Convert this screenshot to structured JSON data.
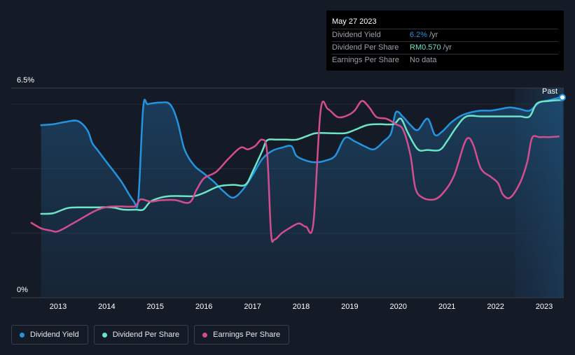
{
  "tooltip": {
    "date": "May 27 2023",
    "rows": [
      {
        "label": "Dividend Yield",
        "value": "6.2%",
        "unit": "/yr",
        "color": "#2394df"
      },
      {
        "label": "Dividend Per Share",
        "value": "RM0.570",
        "unit": "/yr",
        "color": "#6ce4c6"
      },
      {
        "label": "Earnings Per Share",
        "value": "No data",
        "unit": "",
        "color": "#9aa1ab"
      }
    ]
  },
  "legend": [
    {
      "label": "Dividend Yield",
      "color": "#2394df"
    },
    {
      "label": "Dividend Per Share",
      "color": "#6ce4c6"
    },
    {
      "label": "Earnings Per Share",
      "color": "#d44e8f"
    }
  ],
  "chart_data": {
    "type": "line",
    "ylim": [
      0,
      6.5
    ],
    "y_labels": [
      "6.5%",
      "0%"
    ],
    "x_ticks": [
      "2013",
      "2014",
      "2015",
      "2016",
      "2017",
      "2018",
      "2019",
      "2020",
      "2021",
      "2022",
      "2023"
    ],
    "x_range": [
      2012.45,
      2023.45
    ],
    "past_label": "Past",
    "forecast_start": 2022.4,
    "series": [
      {
        "name": "Dividend Yield",
        "color": "#2394df",
        "fill": true,
        "points": [
          [
            2012.65,
            5.35
          ],
          [
            2012.9,
            5.38
          ],
          [
            2013.15,
            5.45
          ],
          [
            2013.4,
            5.48
          ],
          [
            2013.6,
            5.2
          ],
          [
            2013.7,
            4.8
          ],
          [
            2013.8,
            4.6
          ],
          [
            2014.0,
            4.2
          ],
          [
            2014.3,
            3.6
          ],
          [
            2014.55,
            3.0
          ],
          [
            2014.65,
            3.05
          ],
          [
            2014.75,
            5.9
          ],
          [
            2014.85,
            6.0
          ],
          [
            2015.1,
            6.05
          ],
          [
            2015.3,
            6.0
          ],
          [
            2015.45,
            5.5
          ],
          [
            2015.6,
            4.6
          ],
          [
            2015.8,
            4.1
          ],
          [
            2016.0,
            3.85
          ],
          [
            2016.2,
            3.6
          ],
          [
            2016.4,
            3.3
          ],
          [
            2016.6,
            3.1
          ],
          [
            2016.8,
            3.35
          ],
          [
            2017.0,
            3.8
          ],
          [
            2017.2,
            4.3
          ],
          [
            2017.4,
            4.55
          ],
          [
            2017.6,
            4.65
          ],
          [
            2017.8,
            4.7
          ],
          [
            2017.9,
            4.4
          ],
          [
            2018.1,
            4.25
          ],
          [
            2018.3,
            4.2
          ],
          [
            2018.5,
            4.25
          ],
          [
            2018.7,
            4.4
          ],
          [
            2018.9,
            4.95
          ],
          [
            2019.1,
            4.85
          ],
          [
            2019.3,
            4.7
          ],
          [
            2019.5,
            4.6
          ],
          [
            2019.7,
            4.85
          ],
          [
            2019.85,
            5.1
          ],
          [
            2019.95,
            5.75
          ],
          [
            2020.1,
            5.6
          ],
          [
            2020.25,
            5.35
          ],
          [
            2020.4,
            5.2
          ],
          [
            2020.6,
            5.55
          ],
          [
            2020.75,
            5.05
          ],
          [
            2020.9,
            5.15
          ],
          [
            2021.1,
            5.45
          ],
          [
            2021.3,
            5.65
          ],
          [
            2021.5,
            5.75
          ],
          [
            2021.7,
            5.8
          ],
          [
            2021.9,
            5.8
          ],
          [
            2022.1,
            5.85
          ],
          [
            2022.3,
            5.9
          ],
          [
            2022.5,
            5.85
          ],
          [
            2022.7,
            5.8
          ],
          [
            2022.9,
            6.05
          ],
          [
            2023.1,
            6.12
          ],
          [
            2023.3,
            6.2
          ],
          [
            2023.38,
            6.21
          ]
        ]
      },
      {
        "name": "Dividend Per Share",
        "color": "#6ce4c6",
        "fill": false,
        "points": [
          [
            2012.65,
            2.6
          ],
          [
            2012.9,
            2.62
          ],
          [
            2013.2,
            2.78
          ],
          [
            2013.5,
            2.8
          ],
          [
            2013.8,
            2.8
          ],
          [
            2014.1,
            2.8
          ],
          [
            2014.35,
            2.73
          ],
          [
            2014.6,
            2.73
          ],
          [
            2014.75,
            2.73
          ],
          [
            2014.9,
            2.98
          ],
          [
            2015.1,
            3.1
          ],
          [
            2015.3,
            3.15
          ],
          [
            2015.55,
            3.15
          ],
          [
            2015.8,
            3.15
          ],
          [
            2016.0,
            3.25
          ],
          [
            2016.3,
            3.45
          ],
          [
            2016.6,
            3.5
          ],
          [
            2016.85,
            3.5
          ],
          [
            2017.0,
            3.9
          ],
          [
            2017.2,
            4.55
          ],
          [
            2017.3,
            4.88
          ],
          [
            2017.5,
            4.9
          ],
          [
            2017.7,
            4.9
          ],
          [
            2017.9,
            4.9
          ],
          [
            2018.1,
            5.0
          ],
          [
            2018.3,
            5.1
          ],
          [
            2018.6,
            5.1
          ],
          [
            2018.9,
            5.1
          ],
          [
            2019.1,
            5.2
          ],
          [
            2019.35,
            5.35
          ],
          [
            2019.6,
            5.38
          ],
          [
            2019.9,
            5.38
          ],
          [
            2020.05,
            5.55
          ],
          [
            2020.2,
            5.1
          ],
          [
            2020.4,
            4.6
          ],
          [
            2020.6,
            4.58
          ],
          [
            2020.85,
            4.58
          ],
          [
            2021.0,
            4.85
          ],
          [
            2021.2,
            5.3
          ],
          [
            2021.4,
            5.62
          ],
          [
            2021.7,
            5.62
          ],
          [
            2022.0,
            5.62
          ],
          [
            2022.3,
            5.62
          ],
          [
            2022.5,
            5.62
          ],
          [
            2022.7,
            5.62
          ],
          [
            2022.85,
            6.02
          ],
          [
            2023.1,
            6.1
          ],
          [
            2023.38,
            6.13
          ]
        ]
      },
      {
        "name": "Earnings Per Share",
        "color": "#d44e8f",
        "fill": false,
        "points": [
          [
            2012.45,
            2.32
          ],
          [
            2012.65,
            2.15
          ],
          [
            2012.85,
            2.08
          ],
          [
            2013.0,
            2.06
          ],
          [
            2013.3,
            2.3
          ],
          [
            2013.6,
            2.56
          ],
          [
            2013.8,
            2.72
          ],
          [
            2014.0,
            2.81
          ],
          [
            2014.25,
            2.83
          ],
          [
            2014.5,
            2.82
          ],
          [
            2014.6,
            2.85
          ],
          [
            2014.7,
            3.05
          ],
          [
            2014.9,
            2.98
          ],
          [
            2015.1,
            3.02
          ],
          [
            2015.4,
            3.03
          ],
          [
            2015.7,
            2.95
          ],
          [
            2015.85,
            3.35
          ],
          [
            2016.0,
            3.7
          ],
          [
            2016.25,
            3.9
          ],
          [
            2016.5,
            4.3
          ],
          [
            2016.75,
            4.65
          ],
          [
            2016.9,
            4.6
          ],
          [
            2017.05,
            4.7
          ],
          [
            2017.2,
            4.9
          ],
          [
            2017.3,
            4.5
          ],
          [
            2017.38,
            2.0
          ],
          [
            2017.45,
            1.8
          ],
          [
            2017.6,
            2.0
          ],
          [
            2017.75,
            2.15
          ],
          [
            2017.95,
            2.3
          ],
          [
            2018.1,
            2.2
          ],
          [
            2018.25,
            2.3
          ],
          [
            2018.4,
            5.8
          ],
          [
            2018.55,
            5.85
          ],
          [
            2018.75,
            5.6
          ],
          [
            2018.95,
            5.65
          ],
          [
            2019.1,
            5.8
          ],
          [
            2019.25,
            6.1
          ],
          [
            2019.4,
            5.9
          ],
          [
            2019.55,
            5.6
          ],
          [
            2019.75,
            5.55
          ],
          [
            2019.95,
            5.38
          ],
          [
            2020.1,
            5.2
          ],
          [
            2020.25,
            4.4
          ],
          [
            2020.35,
            3.4
          ],
          [
            2020.5,
            3.1
          ],
          [
            2020.75,
            3.05
          ],
          [
            2020.95,
            3.3
          ],
          [
            2021.15,
            3.8
          ],
          [
            2021.35,
            4.75
          ],
          [
            2021.45,
            4.95
          ],
          [
            2021.55,
            4.7
          ],
          [
            2021.7,
            4.0
          ],
          [
            2021.9,
            3.75
          ],
          [
            2022.05,
            3.55
          ],
          [
            2022.15,
            3.2
          ],
          [
            2022.3,
            3.1
          ],
          [
            2022.5,
            3.55
          ],
          [
            2022.65,
            4.2
          ],
          [
            2022.75,
            4.95
          ],
          [
            2022.9,
            4.98
          ],
          [
            2023.1,
            4.98
          ],
          [
            2023.3,
            5.0
          ]
        ]
      }
    ]
  }
}
